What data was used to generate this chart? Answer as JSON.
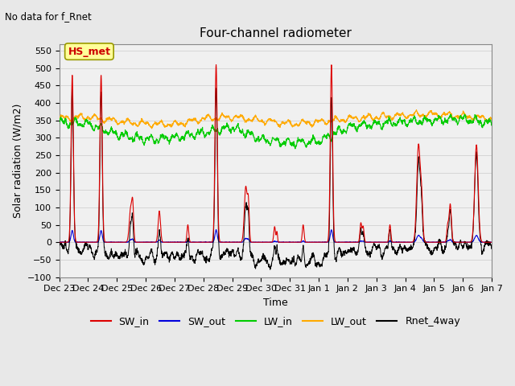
{
  "title": "Four-channel radiometer",
  "subtitle": "No data for f_Rnet",
  "ylabel": "Solar radiation (W/m2)",
  "xlabel": "Time",
  "ylim": [
    -100,
    570
  ],
  "yticks": [
    -100,
    -50,
    0,
    50,
    100,
    150,
    200,
    250,
    300,
    350,
    400,
    450,
    500,
    550
  ],
  "xtick_labels": [
    "Dec 23",
    "Dec 24",
    "Dec 25",
    "Dec 26",
    "Dec 27",
    "Dec 28",
    "Dec 29",
    "Dec 30",
    "Dec 31",
    "Jan 1",
    "Jan 2",
    "Jan 3",
    "Jan 4",
    "Jan 5",
    "Jan 6",
    "Jan 7"
  ],
  "annotation_label": "HS_met",
  "annotation_color": "#cc0000",
  "annotation_bg": "#ffff99",
  "legend_entries": [
    {
      "label": "SW_in",
      "color": "#dd0000"
    },
    {
      "label": "SW_out",
      "color": "#0000dd"
    },
    {
      "label": "LW_in",
      "color": "#00cc00"
    },
    {
      "label": "LW_out",
      "color": "#ffaa00"
    },
    {
      "label": "Rnet_4way",
      "color": "#000000"
    }
  ],
  "bg_color": "#e8e8e8",
  "plot_bg": "#f0f0f0",
  "title_fontsize": 11,
  "axis_fontsize": 9,
  "tick_fontsize": 8,
  "grid_color": "#cccccc"
}
